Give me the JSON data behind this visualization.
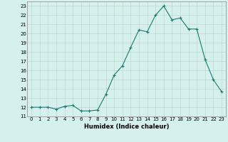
{
  "x": [
    0,
    1,
    2,
    3,
    4,
    5,
    6,
    7,
    8,
    9,
    10,
    11,
    12,
    13,
    14,
    15,
    16,
    17,
    18,
    19,
    20,
    21,
    22,
    23
  ],
  "y": [
    12.0,
    12.0,
    12.0,
    11.8,
    12.1,
    12.2,
    11.6,
    11.6,
    11.7,
    13.4,
    15.5,
    16.5,
    18.5,
    20.4,
    20.2,
    22.0,
    23.0,
    21.5,
    21.7,
    20.5,
    20.5,
    17.2,
    15.0,
    13.7
  ],
  "line_color": "#1a7a6e",
  "marker": "+",
  "marker_size": 3,
  "xlabel": "Humidex (Indice chaleur)",
  "xlim": [
    -0.5,
    23.5
  ],
  "ylim": [
    11.0,
    23.5
  ],
  "yticks": [
    11,
    12,
    13,
    14,
    15,
    16,
    17,
    18,
    19,
    20,
    21,
    22,
    23
  ],
  "xticks": [
    0,
    1,
    2,
    3,
    4,
    5,
    6,
    7,
    8,
    9,
    10,
    11,
    12,
    13,
    14,
    15,
    16,
    17,
    18,
    19,
    20,
    21,
    22,
    23
  ],
  "background_color": "#d6f0ed",
  "grid_color": "#c0d8d4",
  "fig_background": "#d6f0ed",
  "tick_fontsize": 5.0,
  "xlabel_fontsize": 6.0,
  "linewidth": 0.8,
  "markeredgewidth": 0.8
}
